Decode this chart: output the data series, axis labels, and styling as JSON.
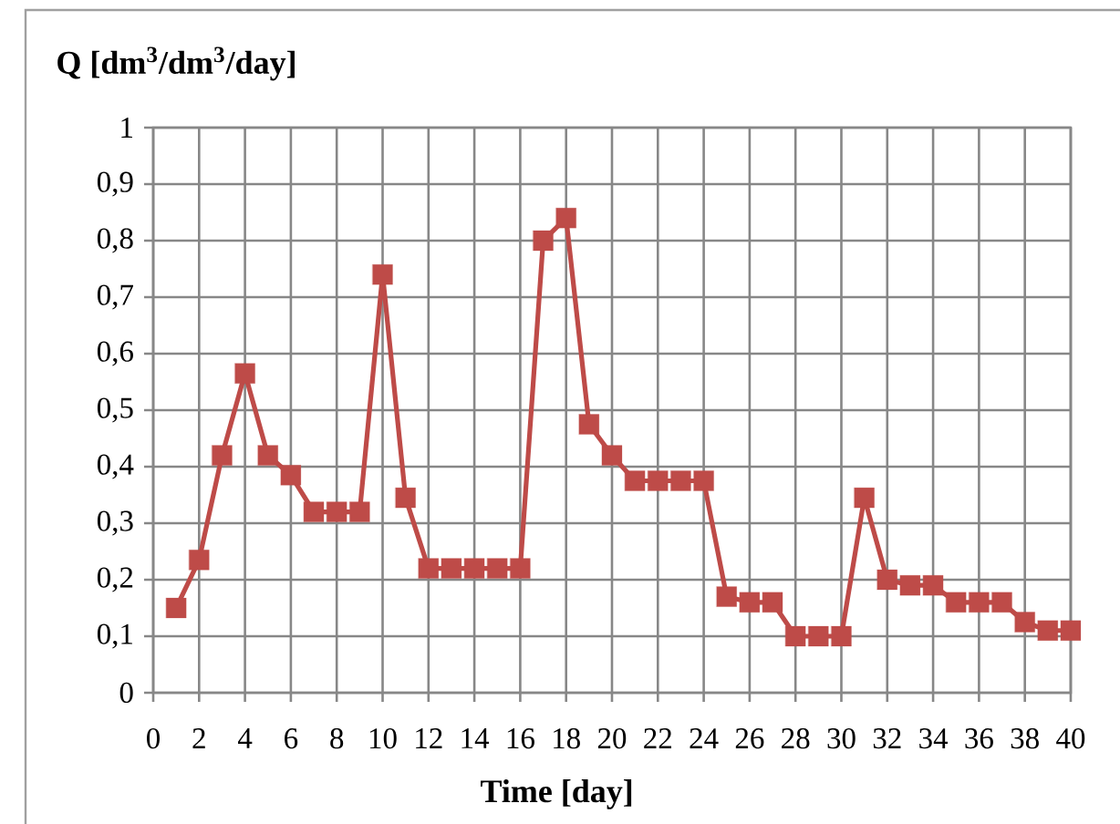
{
  "chart_data": {
    "type": "line",
    "ylabel": "Q [dm$^{3}$/dm$^{3}$/day]",
    "xlabel": "Time [day]",
    "x": [
      1,
      2,
      3,
      4,
      5,
      6,
      7,
      8,
      9,
      10,
      11,
      12,
      13,
      14,
      15,
      16,
      17,
      18,
      19,
      20,
      21,
      22,
      23,
      24,
      25,
      26,
      27,
      28,
      29,
      30,
      31,
      32,
      33,
      34,
      35,
      36,
      37,
      38,
      39,
      40
    ],
    "series": [
      {
        "color": "#be4b48",
        "values": [
          0.15,
          0.235,
          0.42,
          0.565,
          0.42,
          0.385,
          0.32,
          0.32,
          0.32,
          0.74,
          0.345,
          0.22,
          0.22,
          0.22,
          0.22,
          0.22,
          0.8,
          0.84,
          0.475,
          0.42,
          0.375,
          0.375,
          0.375,
          0.375,
          0.17,
          0.16,
          0.16,
          0.1,
          0.1,
          0.1,
          0.345,
          0.2,
          0.19,
          0.19,
          0.16,
          0.16,
          0.16,
          0.125,
          0.11,
          0.11
        ]
      }
    ],
    "xlim": [
      0,
      40
    ],
    "ylim": [
      0,
      1
    ],
    "xticks": [
      0,
      2,
      4,
      6,
      8,
      10,
      12,
      14,
      16,
      18,
      20,
      22,
      24,
      26,
      28,
      30,
      32,
      34,
      36,
      38,
      40
    ],
    "yticks": [
      0,
      {
        "value": 0.1,
        "label": "0,1"
      },
      {
        "value": 0.2,
        "label": "0,2"
      },
      {
        "value": 0.3,
        "label": "0,3"
      },
      {
        "value": 0.4,
        "label": "0,4"
      },
      {
        "value": 0.5,
        "label": "0,5"
      },
      {
        "value": 0.6,
        "label": "0,6"
      },
      {
        "value": 0.7,
        "label": "0,7"
      },
      {
        "value": 0.8,
        "label": "0,8"
      },
      {
        "value": 0.9,
        "label": "0,9"
      },
      1
    ],
    "grid": true,
    "marker": "square",
    "line_style": "solid"
  }
}
